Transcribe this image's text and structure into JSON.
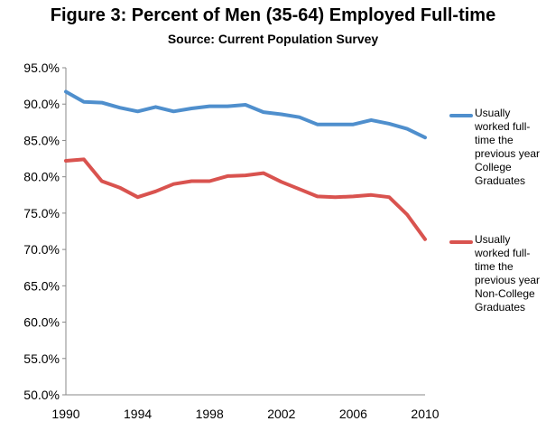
{
  "chart_data": {
    "type": "line",
    "title": "Figure 3: Percent of Men (35-64) Employed Full-time",
    "subtitle": "Source: Current Population Survey",
    "x": [
      1990,
      1991,
      1992,
      1993,
      1994,
      1995,
      1996,
      1997,
      1998,
      1999,
      2000,
      2001,
      2002,
      2003,
      2004,
      2005,
      2006,
      2007,
      2008,
      2009,
      2010
    ],
    "x_ticks": [
      "1990",
      "1994",
      "1998",
      "2002",
      "2006",
      "2010"
    ],
    "y_ticks": [
      "50.0%",
      "55.0%",
      "60.0%",
      "65.0%",
      "70.0%",
      "75.0%",
      "80.0%",
      "85.0%",
      "90.0%",
      "95.0%"
    ],
    "ylim": [
      50,
      95
    ],
    "xlim": [
      1990,
      2010
    ],
    "grid": false,
    "legend_position": "right",
    "series": [
      {
        "name": "Usually worked full-time the previous year College Graduates",
        "color": "#4f8fcd",
        "values": [
          91.7,
          90.3,
          90.2,
          89.5,
          89.0,
          89.6,
          89.0,
          89.4,
          89.7,
          89.7,
          89.9,
          88.9,
          88.6,
          88.2,
          87.2,
          87.2,
          87.2,
          87.8,
          87.3,
          86.6,
          85.4
        ]
      },
      {
        "name": "Usually worked full-time the previous year Non-College Graduates",
        "color": "#d9534f",
        "values": [
          82.2,
          82.4,
          79.4,
          78.5,
          77.2,
          78.0,
          79.0,
          79.4,
          79.4,
          80.1,
          80.2,
          80.5,
          79.3,
          78.3,
          77.3,
          77.2,
          77.3,
          77.5,
          77.2,
          74.8,
          71.4
        ]
      }
    ]
  }
}
